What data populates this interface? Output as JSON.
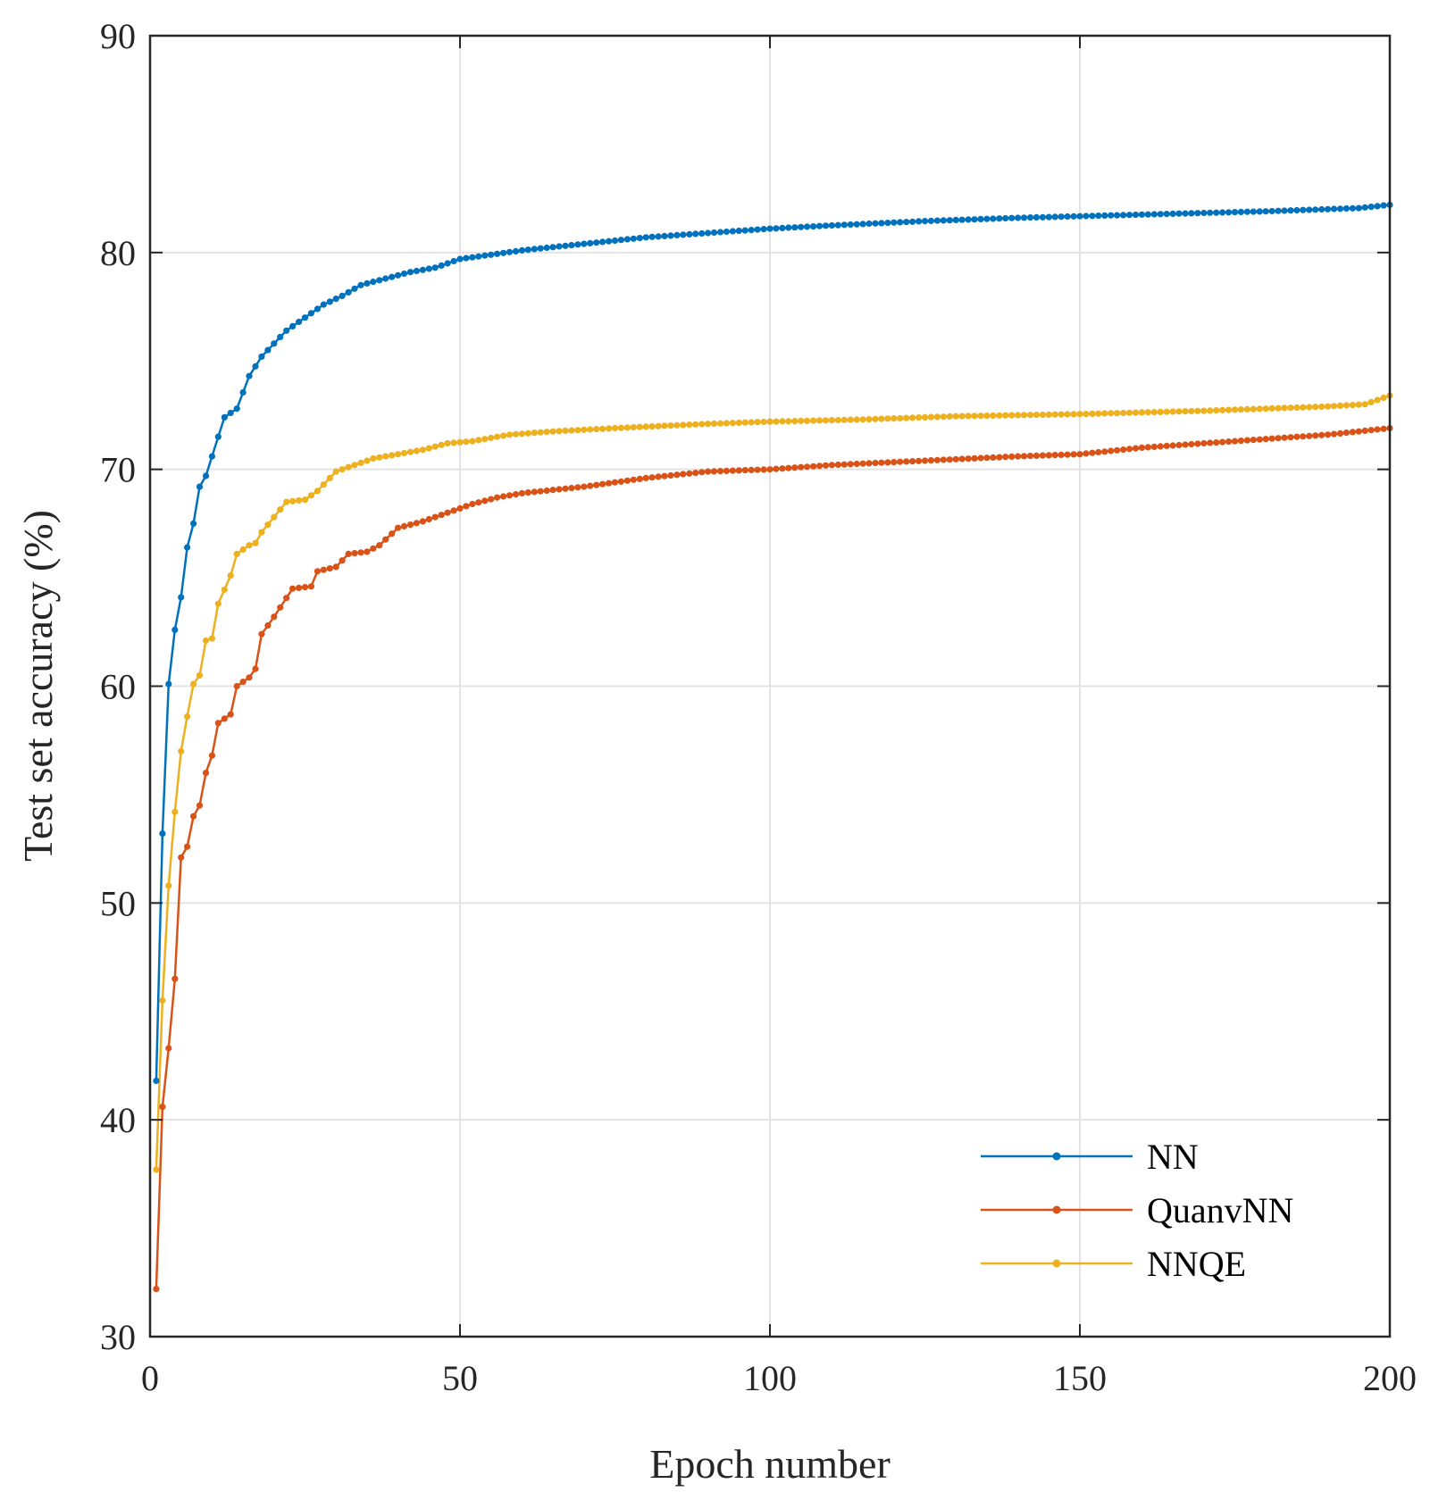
{
  "chart_data": {
    "type": "line",
    "title": "",
    "xlabel": "Epoch number",
    "ylabel": "Test set accuracy (%)",
    "xlim": [
      0,
      200
    ],
    "ylim": [
      30,
      90
    ],
    "xticks": [
      0,
      50,
      100,
      150,
      200
    ],
    "yticks": [
      30,
      40,
      50,
      60,
      70,
      80,
      90
    ],
    "grid": true,
    "legend_position": "bottom-right",
    "series": [
      {
        "name": "NN",
        "color": "#0072BD",
        "anchors": [
          [
            1,
            41.8
          ],
          [
            2,
            53.2
          ],
          [
            3,
            60.1
          ],
          [
            4,
            62.6
          ],
          [
            5,
            64.1
          ],
          [
            6,
            66.4
          ],
          [
            7,
            67.5
          ],
          [
            8,
            69.2
          ],
          [
            9,
            69.7
          ],
          [
            10,
            70.6
          ],
          [
            12,
            72.4
          ],
          [
            14,
            72.8
          ],
          [
            16,
            74.3
          ],
          [
            18,
            75.2
          ],
          [
            20,
            75.8
          ],
          [
            22,
            76.4
          ],
          [
            25,
            77.0
          ],
          [
            28,
            77.6
          ],
          [
            31,
            78.0
          ],
          [
            34,
            78.5
          ],
          [
            38,
            78.8
          ],
          [
            42,
            79.1
          ],
          [
            46,
            79.3
          ],
          [
            50,
            79.7
          ],
          [
            55,
            79.9
          ],
          [
            60,
            80.1
          ],
          [
            70,
            80.4
          ],
          [
            80,
            80.7
          ],
          [
            90,
            80.9
          ],
          [
            100,
            81.1
          ],
          [
            110,
            81.25
          ],
          [
            125,
            81.45
          ],
          [
            140,
            81.6
          ],
          [
            160,
            81.75
          ],
          [
            180,
            81.9
          ],
          [
            195,
            82.05
          ],
          [
            200,
            82.2
          ]
        ]
      },
      {
        "name": "QuanvNN",
        "color": "#D95319",
        "anchors": [
          [
            1,
            32.2
          ],
          [
            2,
            40.6
          ],
          [
            3,
            43.3
          ],
          [
            4,
            46.5
          ],
          [
            5,
            52.1
          ],
          [
            6,
            52.6
          ],
          [
            7,
            54.0
          ],
          [
            8,
            54.5
          ],
          [
            9,
            56.0
          ],
          [
            10,
            56.8
          ],
          [
            11,
            58.3
          ],
          [
            13,
            58.7
          ],
          [
            14,
            60.0
          ],
          [
            16,
            60.4
          ],
          [
            17,
            60.8
          ],
          [
            18,
            62.4
          ],
          [
            20,
            63.2
          ],
          [
            23,
            64.5
          ],
          [
            26,
            64.6
          ],
          [
            27,
            65.3
          ],
          [
            30,
            65.5
          ],
          [
            32,
            66.1
          ],
          [
            35,
            66.2
          ],
          [
            37,
            66.5
          ],
          [
            40,
            67.3
          ],
          [
            44,
            67.6
          ],
          [
            48,
            68.0
          ],
          [
            52,
            68.4
          ],
          [
            56,
            68.7
          ],
          [
            60,
            68.9
          ],
          [
            70,
            69.2
          ],
          [
            80,
            69.6
          ],
          [
            90,
            69.9
          ],
          [
            100,
            70.0
          ],
          [
            110,
            70.2
          ],
          [
            125,
            70.4
          ],
          [
            140,
            70.6
          ],
          [
            150,
            70.7
          ],
          [
            160,
            71.0
          ],
          [
            175,
            71.3
          ],
          [
            190,
            71.6
          ],
          [
            200,
            71.9
          ]
        ]
      },
      {
        "name": "NNQE",
        "color": "#EDB120",
        "anchors": [
          [
            1,
            37.7
          ],
          [
            2,
            45.5
          ],
          [
            3,
            50.8
          ],
          [
            4,
            54.2
          ],
          [
            5,
            57.0
          ],
          [
            6,
            58.6
          ],
          [
            7,
            60.1
          ],
          [
            8,
            60.5
          ],
          [
            9,
            62.1
          ],
          [
            10,
            62.2
          ],
          [
            11,
            63.8
          ],
          [
            13,
            65.1
          ],
          [
            14,
            66.1
          ],
          [
            16,
            66.5
          ],
          [
            17,
            66.6
          ],
          [
            18,
            67.1
          ],
          [
            20,
            67.8
          ],
          [
            22,
            68.5
          ],
          [
            25,
            68.6
          ],
          [
            27,
            69.0
          ],
          [
            30,
            69.9
          ],
          [
            33,
            70.2
          ],
          [
            36,
            70.5
          ],
          [
            40,
            70.7
          ],
          [
            44,
            70.9
          ],
          [
            48,
            71.2
          ],
          [
            52,
            71.3
          ],
          [
            58,
            71.6
          ],
          [
            65,
            71.75
          ],
          [
            75,
            71.9
          ],
          [
            90,
            72.1
          ],
          [
            100,
            72.2
          ],
          [
            115,
            72.3
          ],
          [
            130,
            72.45
          ],
          [
            150,
            72.55
          ],
          [
            170,
            72.7
          ],
          [
            190,
            72.9
          ],
          [
            196,
            73.0
          ],
          [
            200,
            73.4
          ]
        ]
      }
    ]
  }
}
